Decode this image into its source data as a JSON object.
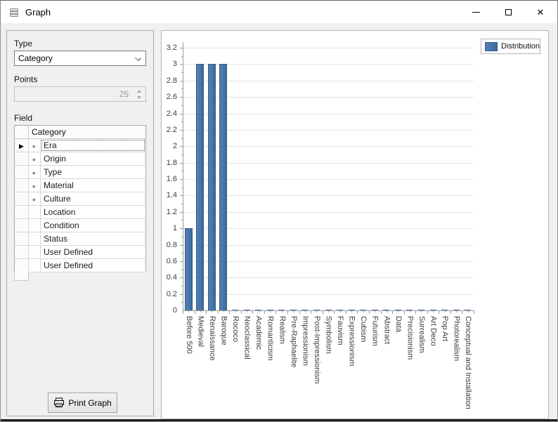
{
  "window": {
    "title": "Graph",
    "minimize_label": "minimize",
    "maximize_label": "maximize",
    "close_label": "close",
    "close_glyph": "✕"
  },
  "sidebar": {
    "type_label": "Type",
    "type_value": "Category",
    "points_label": "Points",
    "points_value": "25",
    "field_label": "Field",
    "grid": {
      "header": "Category",
      "rows": [
        {
          "label": "Era",
          "expandable": true,
          "selected": true
        },
        {
          "label": "Origin",
          "expandable": true,
          "selected": false
        },
        {
          "label": "Type",
          "expandable": true,
          "selected": false
        },
        {
          "label": "Material",
          "expandable": true,
          "selected": false
        },
        {
          "label": "Culture",
          "expandable": true,
          "selected": false
        },
        {
          "label": "Location",
          "expandable": false,
          "selected": false
        },
        {
          "label": "Condition",
          "expandable": false,
          "selected": false
        },
        {
          "label": "Status",
          "expandable": false,
          "selected": false
        },
        {
          "label": "User Defined",
          "expandable": false,
          "selected": false
        },
        {
          "label": "User Defined",
          "expandable": false,
          "selected": false
        }
      ]
    },
    "print_button_label": "Print Graph"
  },
  "chart_data": {
    "type": "bar",
    "title": "",
    "legend": [
      {
        "label": "Distribution",
        "color": "#3f6e9e"
      }
    ],
    "legend_position": "top-right",
    "categories": [
      "Before 500",
      "Medieval",
      "Renaissance",
      "Baroque",
      "Rococo",
      "Neoclassical",
      "Academic",
      "Romanticism",
      "Realism",
      "Pre-Raphaelite",
      "Impressionism",
      "Post-Impressionism",
      "Symbolism",
      "Fauvism",
      "Expressionism",
      "Cubism",
      "Futurism",
      "Abstract",
      "Data",
      "Precisionism",
      "Surrealism",
      "Art Deco",
      "Pop Art",
      "Photorealism",
      "Conceptual and Installation"
    ],
    "values": [
      1,
      3,
      3,
      3,
      0,
      0,
      0,
      0,
      0,
      0,
      0,
      0,
      0,
      0,
      0,
      0,
      0,
      0,
      0,
      0,
      0,
      0,
      0,
      0,
      0
    ],
    "xlabel": "",
    "ylabel": "",
    "ylim": [
      0,
      3.2
    ],
    "ytick_step": 0.2,
    "grid": true,
    "bar_color": "#3f6e9e",
    "bar_border": "#2f5b8c"
  },
  "colors": {
    "window_bg": "#f0f0f0",
    "chart_bg": "#ffffff",
    "accent_bar": "#3f6e9e"
  }
}
